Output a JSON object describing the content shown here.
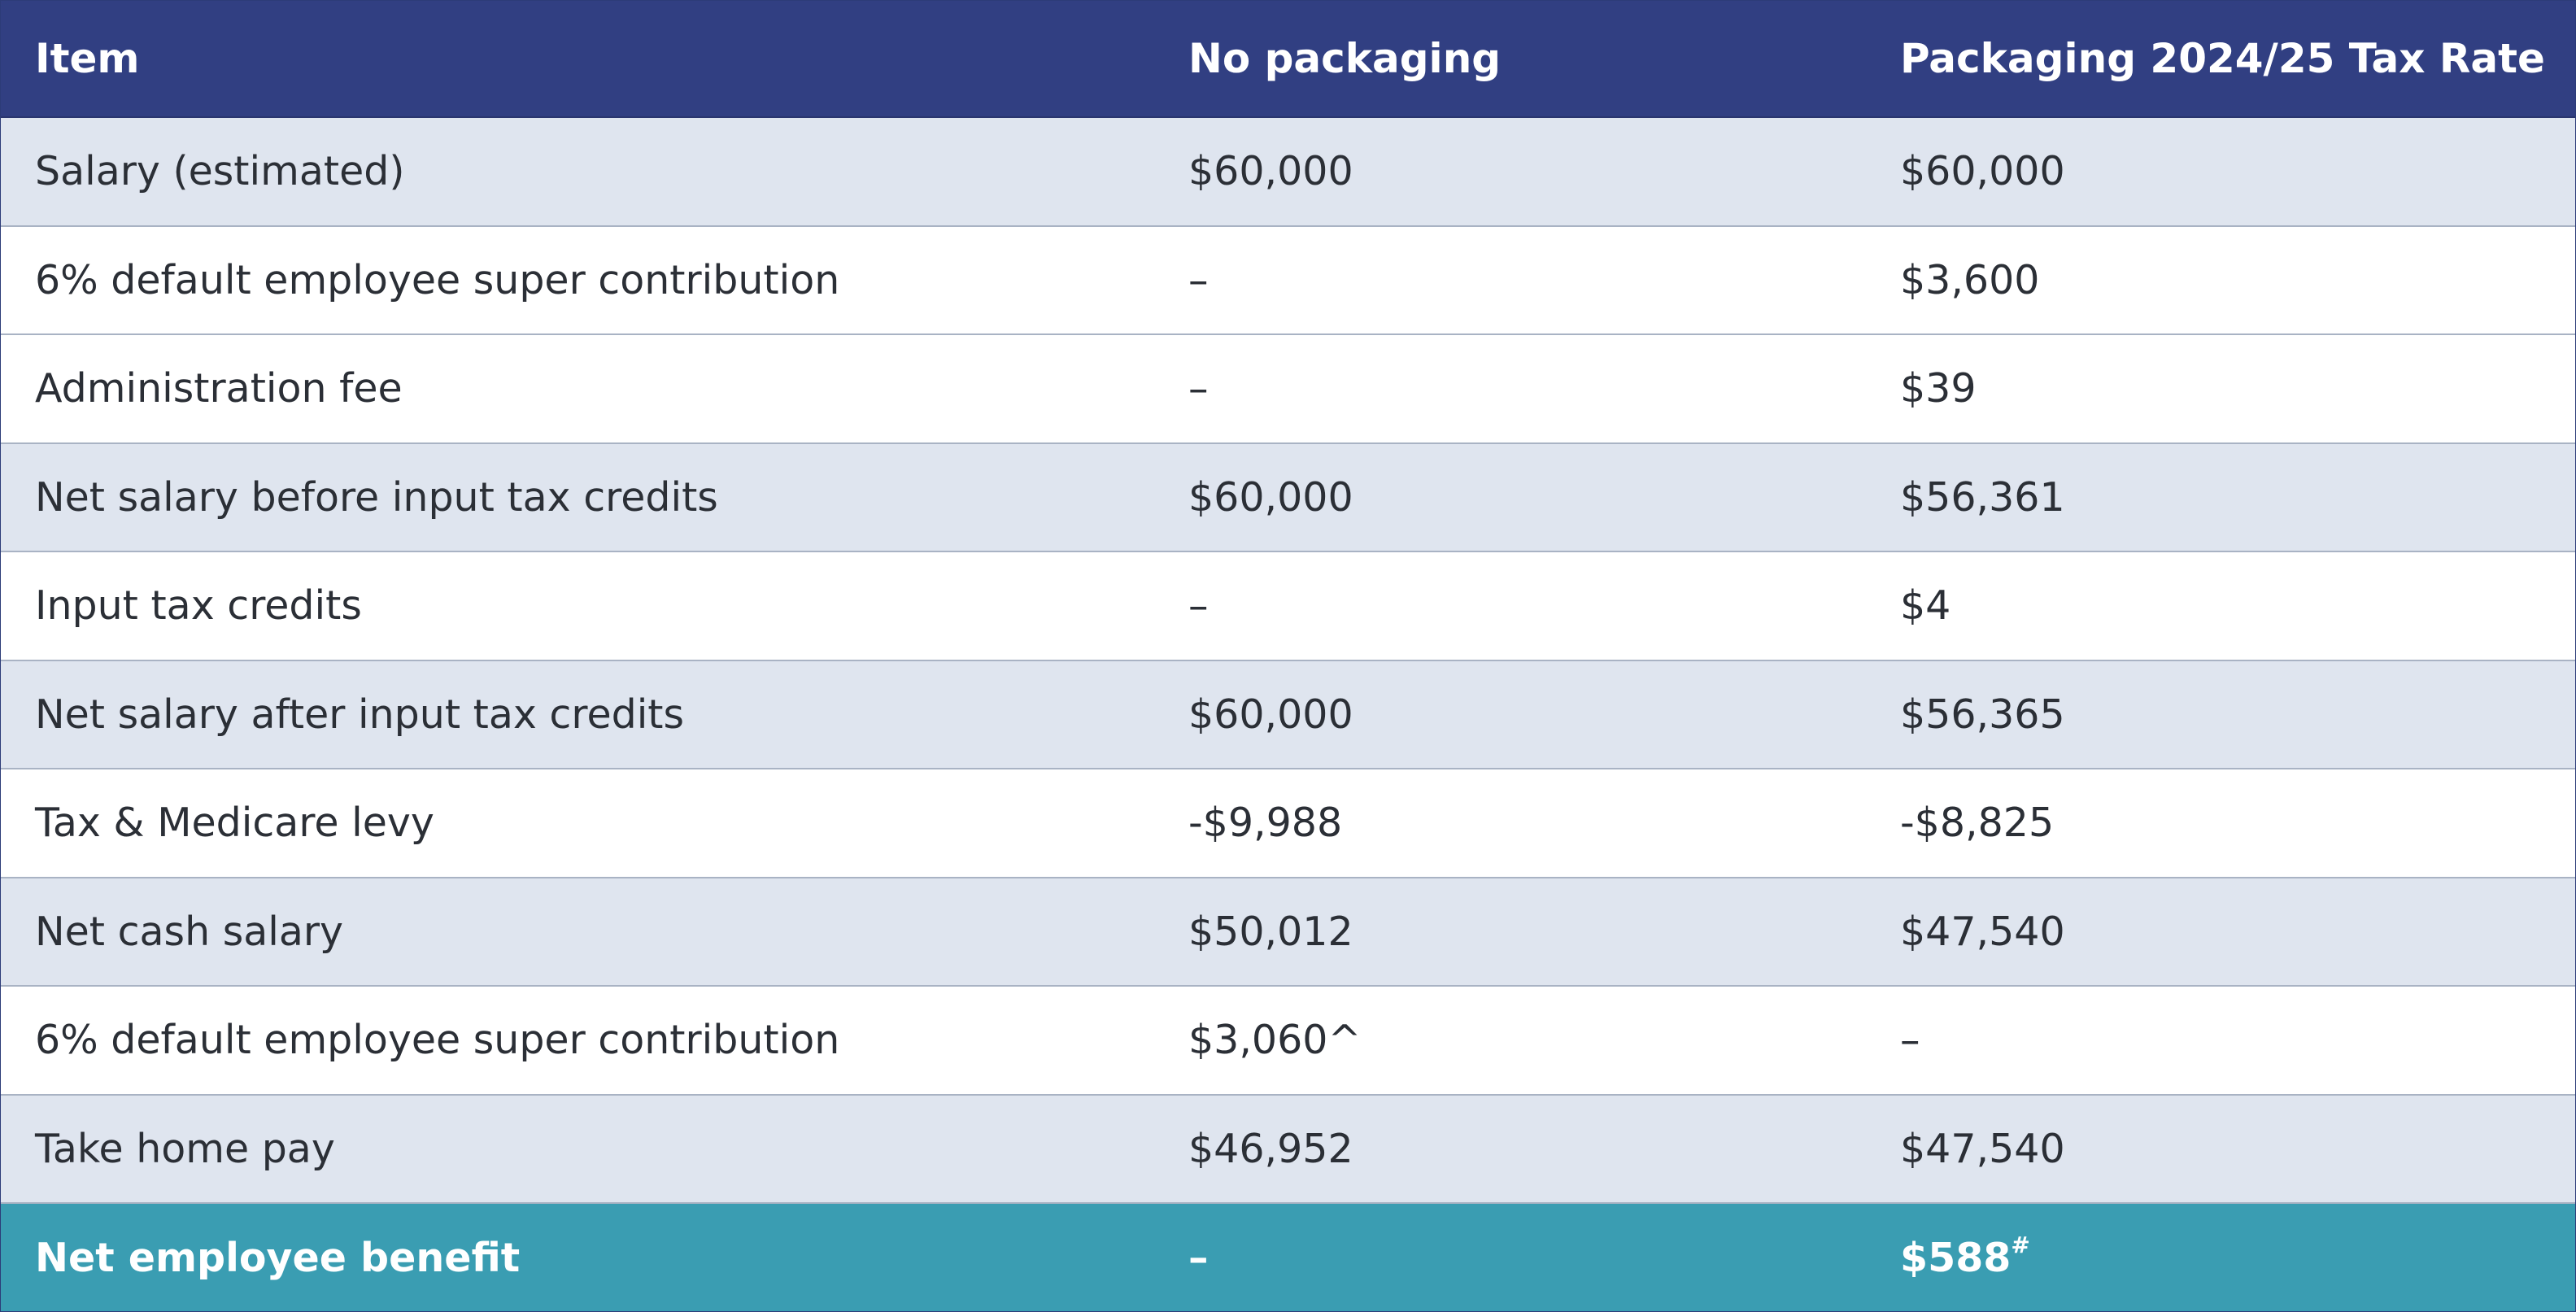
{
  "table": {
    "headers": [
      "Item",
      "No packaging",
      "Packaging 2024/25 Tax Rate"
    ],
    "rows": [
      {
        "item": "Salary (estimated)",
        "no_packaging": "$60,000",
        "packaging": "$60,000"
      },
      {
        "item": "6% default employee super contribution",
        "no_packaging": "–",
        "packaging": "$3,600"
      },
      {
        "item": "Administration fee",
        "no_packaging": "–",
        "packaging": "$39"
      },
      {
        "item": "Net salary before input tax credits",
        "no_packaging": "$60,000",
        "packaging": "$56,361"
      },
      {
        "item": "Input tax credits",
        "no_packaging": "–",
        "packaging": "$4"
      },
      {
        "item": "Net salary after input tax credits",
        "no_packaging": "$60,000",
        "packaging": "$56,365"
      },
      {
        "item": "Tax & Medicare levy",
        "no_packaging": "-$9,988",
        "packaging": "-$8,825"
      },
      {
        "item": "Net cash salary",
        "no_packaging": "$50,012",
        "packaging": "$47,540"
      },
      {
        "item": "6% default employee super contribution",
        "no_packaging": "$3,060^",
        "packaging": "–"
      },
      {
        "item": "Take home pay",
        "no_packaging": "$46,952",
        "packaging": "$47,540"
      }
    ],
    "footer": {
      "item": "Net employee benefit",
      "no_packaging": "–",
      "packaging": "$588",
      "packaging_mark": "#"
    }
  },
  "colors": {
    "header_bg": "#313f82",
    "shaded_row_bg": "#dfe5ef",
    "plain_row_bg": "#ffffff",
    "footer_bg": "#3a9db2"
  }
}
